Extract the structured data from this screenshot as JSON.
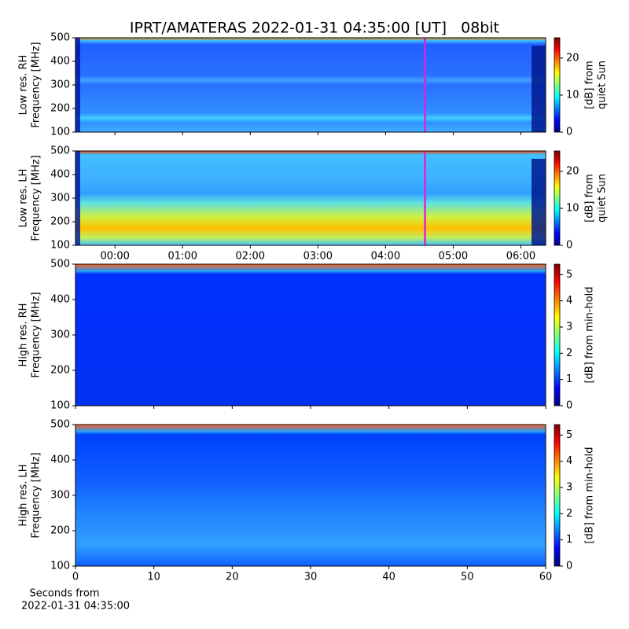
{
  "title": "IPRT/AMATERAS 2022-01-31 04:35:00 [UT]   08bit",
  "chart_data": [
    {
      "type": "heatmap",
      "ylabel": [
        "Low res. RH",
        "Frequency [MHz]"
      ],
      "xlim": [
        -35,
        382
      ],
      "ylim": [
        100,
        500
      ],
      "yticks": [
        100,
        200,
        300,
        400,
        500
      ],
      "marker_line": {
        "x": 275,
        "color": "#e020e0"
      },
      "colorbar": {
        "label": [
          "[dB] from",
          "quiet Sun"
        ],
        "lim": [
          0,
          25.5
        ],
        "ticks": [
          0,
          10,
          20
        ]
      }
    },
    {
      "type": "heatmap",
      "ylabel": [
        "Low res. LH",
        "Frequency [MHz]"
      ],
      "xlim": [
        -35,
        382
      ],
      "ylim": [
        100,
        500
      ],
      "yticks": [
        100,
        200,
        300,
        400,
        500
      ],
      "xticks": [
        {
          "value": 0,
          "label": "00:00"
        },
        {
          "value": 60,
          "label": "01:00"
        },
        {
          "value": 120,
          "label": "02:00"
        },
        {
          "value": 180,
          "label": "03:00"
        },
        {
          "value": 240,
          "label": "04:00"
        },
        {
          "value": 300,
          "label": "05:00"
        },
        {
          "value": 360,
          "label": "06:00"
        }
      ],
      "marker_line": {
        "x": 275,
        "color": "#e020e0"
      },
      "colorbar": {
        "label": [
          "[dB] from",
          "quiet Sun"
        ],
        "lim": [
          0,
          25.5
        ],
        "ticks": [
          0,
          10,
          20
        ]
      }
    },
    {
      "type": "heatmap",
      "ylabel": [
        "High res. RH",
        "Frequency [MHz]"
      ],
      "xlim": [
        0,
        60
      ],
      "ylim": [
        100,
        500
      ],
      "yticks": [
        100,
        200,
        300,
        400,
        500
      ],
      "colorbar": {
        "label": [
          "[dB] from min-hold"
        ],
        "lim": [
          0,
          5.4
        ],
        "ticks": [
          0,
          1,
          2,
          3,
          4,
          5
        ]
      }
    },
    {
      "type": "heatmap",
      "ylabel": [
        "High res. LH",
        "Frequency [MHz]"
      ],
      "xlim": [
        0,
        60
      ],
      "ylim": [
        100,
        500
      ],
      "yticks": [
        100,
        200,
        300,
        400,
        500
      ],
      "xticks": [
        0,
        10,
        20,
        30,
        40,
        50,
        60
      ],
      "xlabel": [
        "Seconds from",
        "2022-01-31 04:35:00"
      ],
      "colorbar": {
        "label": [
          "[dB] from min-hold"
        ],
        "lim": [
          0,
          5.4
        ],
        "ticks": [
          0,
          1,
          2,
          3,
          4,
          5
        ]
      }
    }
  ]
}
